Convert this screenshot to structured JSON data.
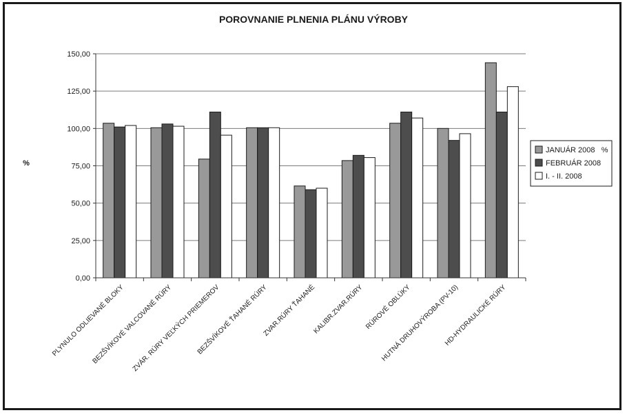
{
  "chart_data": {
    "type": "bar",
    "title": "POROVNANIE PLNENIA PLÁNU VÝROBY",
    "xlabel": "",
    "ylabel": "%",
    "ylim": [
      0,
      150
    ],
    "yticks": [
      "0,00",
      "25,00",
      "50,00",
      "75,00",
      "100,00",
      "125,00",
      "150,00"
    ],
    "grid": true,
    "legend_position": "right",
    "categories": [
      "PLYNULO ODLIEVANÉ BLOKY",
      "BEZŠVÍKOVÉ VALCOVANÉ RÚRY",
      "ZVÁR. RÚRY VEĽKÝCH PRIEMEROV",
      "BEZŠVÍKOVÉ ŤAHANÉ RÚRY",
      "ZVAR.RÚRY ŤAHANÉ",
      "KALIBR.ZVAR.RÚRY",
      "RÚROVÉ OBLÚKY",
      "HUTNÁ DRUHOVÝROBA (PV-10)",
      "HD-HYDRAULICKÉ RÚRY"
    ],
    "series": [
      {
        "name": "JANUÁR 2008   %",
        "color": "#999999",
        "values": [
          103.5,
          100.5,
          79.5,
          100.5,
          61.5,
          78.5,
          103.5,
          100.0,
          144.0
        ]
      },
      {
        "name": "FEBRUÁR 2008",
        "color": "#4d4d4d",
        "values": [
          101.0,
          103.0,
          111.0,
          100.5,
          59.0,
          82.0,
          111.0,
          92.0,
          111.0
        ]
      },
      {
        "name": "I. - II. 2008",
        "color": "#ffffff",
        "values": [
          102.0,
          101.5,
          95.5,
          100.5,
          60.0,
          80.5,
          107.0,
          96.5,
          128.0
        ]
      }
    ]
  }
}
